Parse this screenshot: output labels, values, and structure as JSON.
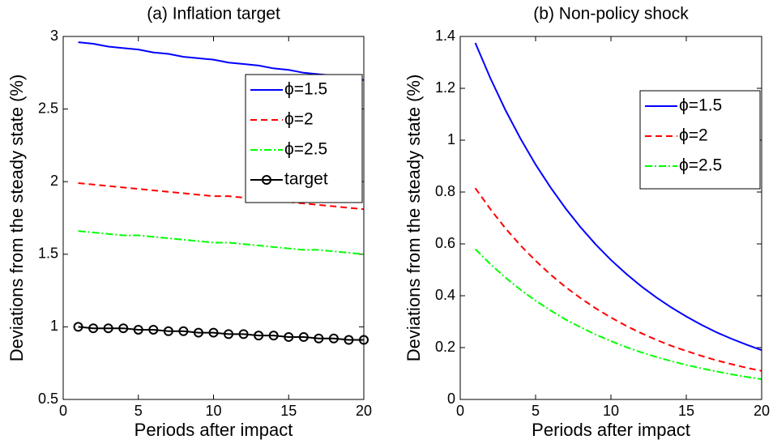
{
  "chart_data": [
    {
      "type": "line",
      "title": "(a) Inflation target",
      "xlabel": "Periods after impact",
      "ylabel": "Deviations from the steady state (%)",
      "x": [
        1,
        2,
        3,
        4,
        5,
        6,
        7,
        8,
        9,
        10,
        11,
        12,
        13,
        14,
        15,
        16,
        17,
        18,
        19,
        20
      ],
      "xlim": [
        0,
        20
      ],
      "xticks": [
        0,
        5,
        10,
        15,
        20
      ],
      "ylim": [
        0.5,
        3
      ],
      "yticks": [
        0.5,
        1,
        1.5,
        2,
        2.5,
        3
      ],
      "legend": "upper right",
      "series": [
        {
          "name": "ϕ=1.5",
          "color": "#0000ff",
          "dash": "solid",
          "values": [
            2.96,
            2.95,
            2.93,
            2.92,
            2.91,
            2.89,
            2.88,
            2.86,
            2.85,
            2.84,
            2.82,
            2.81,
            2.8,
            2.78,
            2.77,
            2.75,
            2.74,
            2.73,
            2.71,
            2.7
          ]
        },
        {
          "name": "ϕ=2",
          "color": "#ff0000",
          "dash": "dashed",
          "values": [
            1.99,
            1.98,
            1.97,
            1.96,
            1.95,
            1.94,
            1.93,
            1.92,
            1.91,
            1.9,
            1.9,
            1.89,
            1.88,
            1.87,
            1.86,
            1.85,
            1.84,
            1.83,
            1.82,
            1.81
          ]
        },
        {
          "name": "ϕ=2.5",
          "color": "#00ff00",
          "dash": "dashdot",
          "values": [
            1.66,
            1.65,
            1.64,
            1.63,
            1.63,
            1.62,
            1.61,
            1.6,
            1.59,
            1.58,
            1.58,
            1.57,
            1.56,
            1.55,
            1.54,
            1.53,
            1.53,
            1.52,
            1.51,
            1.5
          ]
        },
        {
          "name": "target",
          "color": "#000000",
          "dash": "solid",
          "marker": "circle",
          "values": [
            1.0,
            0.99,
            0.99,
            0.99,
            0.98,
            0.98,
            0.97,
            0.97,
            0.96,
            0.96,
            0.95,
            0.95,
            0.94,
            0.94,
            0.93,
            0.93,
            0.92,
            0.92,
            0.91,
            0.91
          ]
        }
      ]
    },
    {
      "type": "line",
      "title": "(b) Non-policy shock",
      "xlabel": "Periods after impact",
      "ylabel": "Deviations from the steady state (%)",
      "x": [
        1,
        2,
        3,
        4,
        5,
        6,
        7,
        8,
        9,
        10,
        11,
        12,
        13,
        14,
        15,
        16,
        17,
        18,
        19,
        20
      ],
      "xlim": [
        0,
        20
      ],
      "xticks": [
        0,
        5,
        10,
        15,
        20
      ],
      "ylim": [
        0,
        1.4
      ],
      "yticks": [
        0,
        0.2,
        0.4,
        0.6,
        0.8,
        1,
        1.2,
        1.4
      ],
      "legend": "upper right",
      "series": [
        {
          "name": "ϕ=1.5",
          "color": "#0000ff",
          "dash": "solid",
          "values": [
            1.375,
            1.239,
            1.116,
            1.006,
            0.906,
            0.817,
            0.736,
            0.663,
            0.597,
            0.538,
            0.485,
            0.437,
            0.394,
            0.355,
            0.32,
            0.288,
            0.259,
            0.234,
            0.211,
            0.19
          ]
        },
        {
          "name": "ϕ=2",
          "color": "#ff0000",
          "dash": "dashed",
          "values": [
            0.815,
            0.734,
            0.66,
            0.594,
            0.535,
            0.481,
            0.433,
            0.39,
            0.351,
            0.316,
            0.284,
            0.256,
            0.23,
            0.207,
            0.187,
            0.168,
            0.151,
            0.136,
            0.122,
            0.11
          ]
        },
        {
          "name": "ϕ=2.5",
          "color": "#00ff00",
          "dash": "dashdot",
          "values": [
            0.58,
            0.522,
            0.47,
            0.423,
            0.381,
            0.343,
            0.308,
            0.278,
            0.25,
            0.225,
            0.202,
            0.182,
            0.164,
            0.148,
            0.133,
            0.12,
            0.108,
            0.097,
            0.087,
            0.078
          ]
        }
      ]
    }
  ]
}
